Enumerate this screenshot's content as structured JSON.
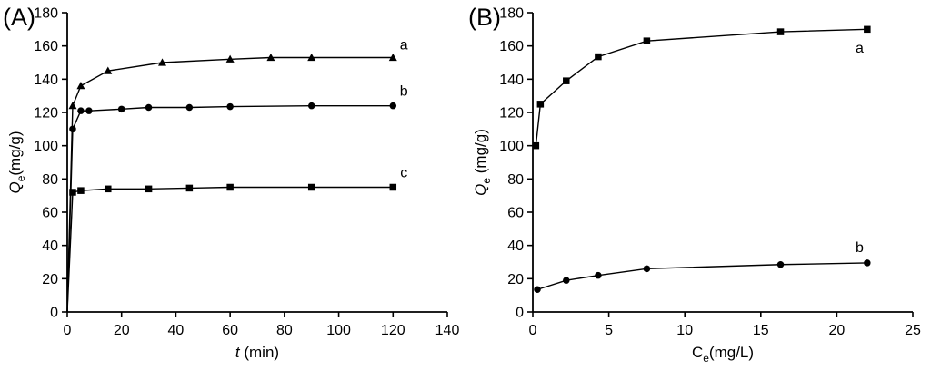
{
  "figure": {
    "background": "#ffffff",
    "line_color": "#000000",
    "marker_color": "#000000"
  },
  "chart_data": [
    {
      "type": "line",
      "panel_label": "(A)",
      "xlabel_segments": [
        {
          "text": "t",
          "italic": true
        },
        {
          "text": " (min)"
        }
      ],
      "ylabel_segments": [
        {
          "text": "Q",
          "italic": true
        },
        {
          "text": "e",
          "sub": true
        },
        {
          "text": "(mg/g)"
        }
      ],
      "xlim": [
        0,
        140
      ],
      "ylim": [
        0,
        180
      ],
      "xticks": [
        0,
        20,
        40,
        60,
        80,
        100,
        120,
        140
      ],
      "yticks": [
        0,
        20,
        40,
        60,
        80,
        100,
        120,
        140,
        160,
        180
      ],
      "grid": false,
      "series": [
        {
          "name": "a",
          "marker": "triangle",
          "label_pos": [
            124,
            158
          ],
          "lead_in": [
            [
              0,
              0
            ]
          ],
          "points": [
            [
              2,
              124
            ],
            [
              5,
              136
            ],
            [
              15,
              145
            ],
            [
              35,
              150
            ],
            [
              60,
              152
            ],
            [
              75,
              153
            ],
            [
              90,
              153
            ],
            [
              120,
              153
            ]
          ]
        },
        {
          "name": "b",
          "marker": "circle",
          "label_pos": [
            124,
            130
          ],
          "lead_in": [
            [
              0,
              0
            ]
          ],
          "points": [
            [
              2,
              110
            ],
            [
              5,
              121
            ],
            [
              8,
              121
            ],
            [
              20,
              122
            ],
            [
              30,
              123
            ],
            [
              45,
              123
            ],
            [
              60,
              123.5
            ],
            [
              90,
              124
            ],
            [
              120,
              124
            ]
          ]
        },
        {
          "name": "c",
          "marker": "square",
          "label_pos": [
            124,
            81
          ],
          "lead_in": [
            [
              0,
              0
            ]
          ],
          "points": [
            [
              2,
              72
            ],
            [
              5,
              73
            ],
            [
              15,
              74
            ],
            [
              30,
              74
            ],
            [
              45,
              74.5
            ],
            [
              60,
              75
            ],
            [
              90,
              75
            ],
            [
              120,
              75
            ]
          ]
        }
      ]
    },
    {
      "type": "line",
      "panel_label": "(B)",
      "xlabel_segments": [
        {
          "text": "C"
        },
        {
          "text": "e",
          "sub": true
        },
        {
          "text": "(mg/L)"
        }
      ],
      "ylabel_segments": [
        {
          "text": "Q",
          "italic": true
        },
        {
          "text": "e",
          "sub": true
        },
        {
          "text": " (mg/g)"
        }
      ],
      "xlim": [
        0,
        25
      ],
      "ylim": [
        0,
        180
      ],
      "xticks": [
        0,
        5,
        10,
        15,
        20,
        25
      ],
      "yticks": [
        0,
        20,
        40,
        60,
        80,
        100,
        120,
        140,
        160,
        180
      ],
      "grid": false,
      "series": [
        {
          "name": "a",
          "marker": "square",
          "label_pos": [
            21.5,
            156
          ],
          "lead_in": [],
          "points": [
            [
              0.2,
              100
            ],
            [
              0.5,
              125
            ],
            [
              2.2,
              139
            ],
            [
              4.3,
              153.5
            ],
            [
              7.5,
              163
            ],
            [
              16.3,
              168.5
            ],
            [
              22,
              170
            ]
          ]
        },
        {
          "name": "b",
          "marker": "circle",
          "label_pos": [
            21.5,
            36
          ],
          "lead_in": [],
          "points": [
            [
              0.3,
              13.5
            ],
            [
              2.2,
              19
            ],
            [
              4.3,
              22
            ],
            [
              7.5,
              26
            ],
            [
              16.3,
              28.5
            ],
            [
              22,
              29.5
            ]
          ]
        }
      ]
    }
  ]
}
